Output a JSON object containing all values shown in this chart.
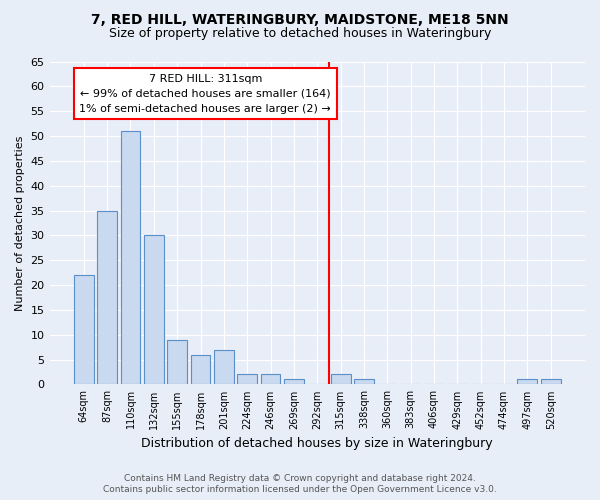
{
  "title1": "7, RED HILL, WATERINGBURY, MAIDSTONE, ME18 5NN",
  "title2": "Size of property relative to detached houses in Wateringbury",
  "xlabel": "Distribution of detached houses by size in Wateringbury",
  "ylabel": "Number of detached properties",
  "bar_labels": [
    "64sqm",
    "87sqm",
    "110sqm",
    "132sqm",
    "155sqm",
    "178sqm",
    "201sqm",
    "224sqm",
    "246sqm",
    "269sqm",
    "292sqm",
    "315sqm",
    "338sqm",
    "360sqm",
    "383sqm",
    "406sqm",
    "429sqm",
    "452sqm",
    "474sqm",
    "497sqm",
    "520sqm"
  ],
  "bar_values": [
    22,
    35,
    51,
    30,
    9,
    6,
    7,
    2,
    2,
    1,
    0,
    2,
    1,
    0,
    0,
    0,
    0,
    0,
    0,
    1,
    1
  ],
  "bar_color": "#c9d9ef",
  "bar_edge_color": "#5b8fc9",
  "vline_x_index": 11,
  "vline_color": "red",
  "annotation_title": "7 RED HILL: 311sqm",
  "annotation_line1": "← 99% of detached houses are smaller (164)",
  "annotation_line2": "1% of semi-detached houses are larger (2) →",
  "ylim": [
    0,
    65
  ],
  "yticks": [
    0,
    5,
    10,
    15,
    20,
    25,
    30,
    35,
    40,
    45,
    50,
    55,
    60,
    65
  ],
  "footnote1": "Contains HM Land Registry data © Crown copyright and database right 2024.",
  "footnote2": "Contains public sector information licensed under the Open Government Licence v3.0.",
  "bg_color": "#e8eef8",
  "plot_bg_color": "#e8eef8",
  "title1_fontsize": 10,
  "title2_fontsize": 9,
  "ylabel_fontsize": 8,
  "xlabel_fontsize": 9,
  "annot_fontsize": 8,
  "footnote_fontsize": 6.5,
  "grid_color": "#ffffff",
  "bar_width": 0.85
}
